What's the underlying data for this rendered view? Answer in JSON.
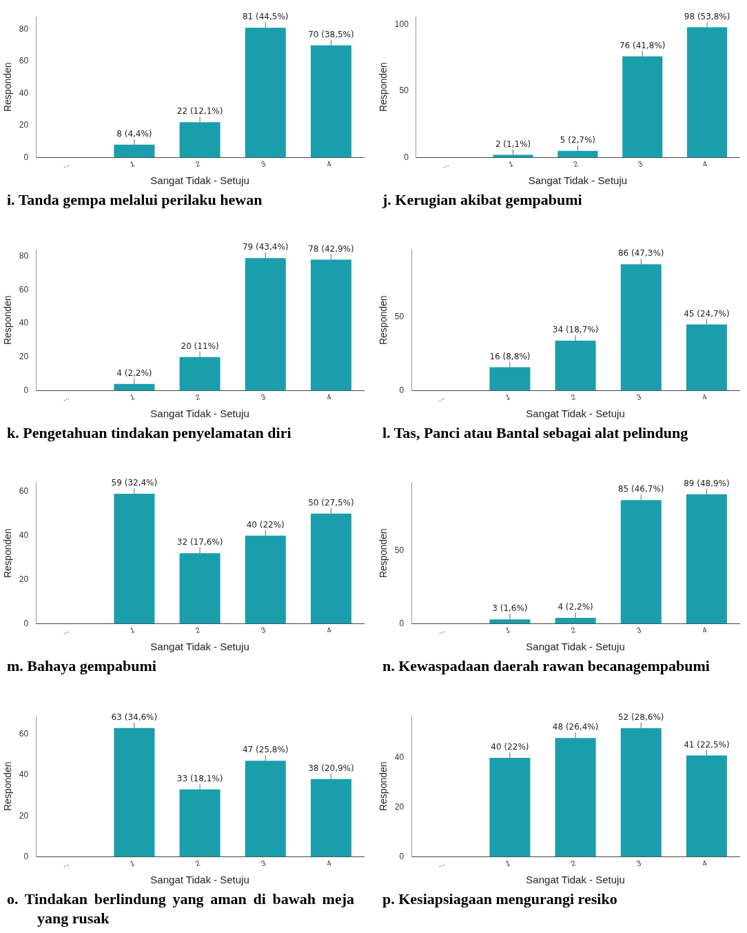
{
  "chart_data": [
    {
      "type": "bar",
      "title": "i. Tanda gempa melalui perilaku hewan",
      "xlabel": "Sangat Tidak - Setuju",
      "ylabel": "Responden",
      "categories": [
        "...",
        "1",
        "2",
        "3",
        "4"
      ],
      "values": [
        null,
        8,
        22,
        81,
        70
      ],
      "value_labels": [
        null,
        "8 (4,4%)",
        "22 (12,1%)",
        "81 (44,5%)",
        "70 (38,5%)"
      ],
      "color": "#1b9eab",
      "ylim": [
        0,
        88
      ],
      "yticks": [
        0,
        20,
        40,
        60,
        80
      ]
    },
    {
      "type": "bar",
      "title": "j. Kerugian akibat gempabumi",
      "xlabel": "Sangat Tidak - Setuju",
      "ylabel": "Responden",
      "categories": [
        "...",
        "1",
        "2",
        "3",
        "4"
      ],
      "values": [
        null,
        2,
        5,
        76,
        98
      ],
      "value_labels": [
        null,
        "2 (1,1%)",
        "5 (2,7%)",
        "76 (41,8%)",
        "98 (53,8%)"
      ],
      "color": "#1b9eab",
      "ylim": [
        0,
        106
      ],
      "yticks": [
        0,
        50,
        100
      ]
    },
    {
      "type": "bar",
      "title": "k. Pengetahuan tindakan penyelamatan diri",
      "xlabel": "Sangat Tidak - Setuju",
      "ylabel": "Responden",
      "categories": [
        "...",
        "1",
        "2",
        "3",
        "4"
      ],
      "values": [
        null,
        4,
        20,
        79,
        78
      ],
      "value_labels": [
        null,
        "4 (2,2%)",
        "20 (11%)",
        "79 (43,4%)",
        "78 (42,9%)"
      ],
      "color": "#1b9eab",
      "ylim": [
        0,
        84
      ],
      "yticks": [
        0,
        20,
        40,
        60,
        80
      ]
    },
    {
      "type": "bar",
      "title": "l. Tas, Panci atau Bantal sebagai alat pelindung",
      "xlabel": "Sangat Tidak - Setuju",
      "ylabel": "Responden",
      "categories": [
        "...",
        "1",
        "2",
        "3",
        "4"
      ],
      "values": [
        null,
        16,
        34,
        86,
        45
      ],
      "value_labels": [
        null,
        "16 (8,8%)",
        "34 (18,7%)",
        "86 (47,3%)",
        "45 (24,7%)"
      ],
      "color": "#1b9eab",
      "ylim": [
        0,
        96
      ],
      "yticks": [
        0,
        50
      ]
    },
    {
      "type": "bar",
      "title": "m. Bahaya gempabumi",
      "xlabel": "Sangat Tidak - Setuju",
      "ylabel": "Responden",
      "categories": [
        "...",
        "1",
        "2",
        "3",
        "4"
      ],
      "values": [
        null,
        59,
        32,
        40,
        50
      ],
      "value_labels": [
        null,
        "59 (32,4%)",
        "32 (17,6%)",
        "40 (22%)",
        "50 (27,5%)"
      ],
      "color": "#1b9eab",
      "ylim": [
        0,
        64
      ],
      "yticks": [
        0,
        20,
        40,
        60
      ]
    },
    {
      "type": "bar",
      "title": "n. Kewaspadaan daerah rawan becanagempabumi",
      "xlabel": "Sangat Tidak - Setuju",
      "ylabel": "Responden",
      "categories": [
        "...",
        "1",
        "2",
        "3",
        "4"
      ],
      "values": [
        null,
        3,
        4,
        85,
        89
      ],
      "value_labels": [
        null,
        "3 (1,6%)",
        "4 (2,2%)",
        "85 (46,7%)",
        "89 (48,9%)"
      ],
      "color": "#1b9eab",
      "ylim": [
        0,
        97
      ],
      "yticks": [
        0,
        50
      ]
    },
    {
      "type": "bar",
      "title": "o. Tindakan berlindung yang aman di bawah meja yang rusak",
      "xlabel": "Sangat Tidak - Setuju",
      "ylabel": "Responden",
      "categories": [
        "...",
        "1",
        "2",
        "3",
        "4"
      ],
      "values": [
        null,
        63,
        33,
        47,
        38
      ],
      "value_labels": [
        null,
        "63 (34,6%)",
        "33 (18,1%)",
        "47 (25,8%)",
        "38 (20,9%)"
      ],
      "color": "#1b9eab",
      "ylim": [
        0,
        69
      ],
      "yticks": [
        0,
        20,
        40,
        60
      ]
    },
    {
      "type": "bar",
      "title": "p. Kesiapsiagaan mengurangi resiko",
      "xlabel": "Sangat Tidak - Setuju",
      "ylabel": "Responden",
      "categories": [
        "...",
        "1",
        "2",
        "3",
        "4"
      ],
      "values": [
        null,
        40,
        48,
        52,
        41
      ],
      "value_labels": [
        null,
        "40 (22%)",
        "48 (26,4%)",
        "52 (28,6%)",
        "41 (22,5%)"
      ],
      "color": "#1b9eab",
      "ylim": [
        0,
        57
      ],
      "yticks": [
        0,
        20,
        40
      ]
    }
  ]
}
